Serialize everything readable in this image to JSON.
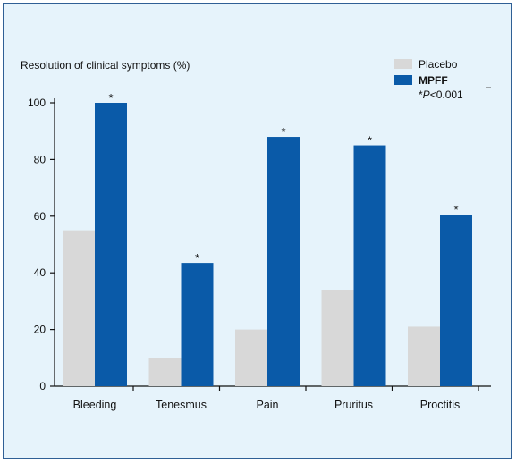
{
  "chart_data": {
    "type": "bar",
    "title": "",
    "ylabel": "Resolution of clinical symptoms (%)",
    "xlabel": "",
    "ylim": [
      0,
      100
    ],
    "yticks": [
      0,
      20,
      40,
      60,
      80,
      100
    ],
    "categories": [
      "Bleeding",
      "Tenesmus",
      "Pain",
      "Pruritus",
      "Proctitis"
    ],
    "series": [
      {
        "name": "Placebo",
        "color": "#d8d8d8",
        "values": [
          55,
          10,
          20,
          34,
          21
        ]
      },
      {
        "name": "MPFF",
        "color": "#0a5aa8",
        "values": [
          100,
          43.5,
          88,
          85,
          60.5
        ]
      }
    ],
    "significance_marks": [
      "*",
      "*",
      "*",
      "*",
      "*"
    ],
    "legend": {
      "placement": "top-right",
      "note": "*P<0.001"
    },
    "grid": false
  }
}
